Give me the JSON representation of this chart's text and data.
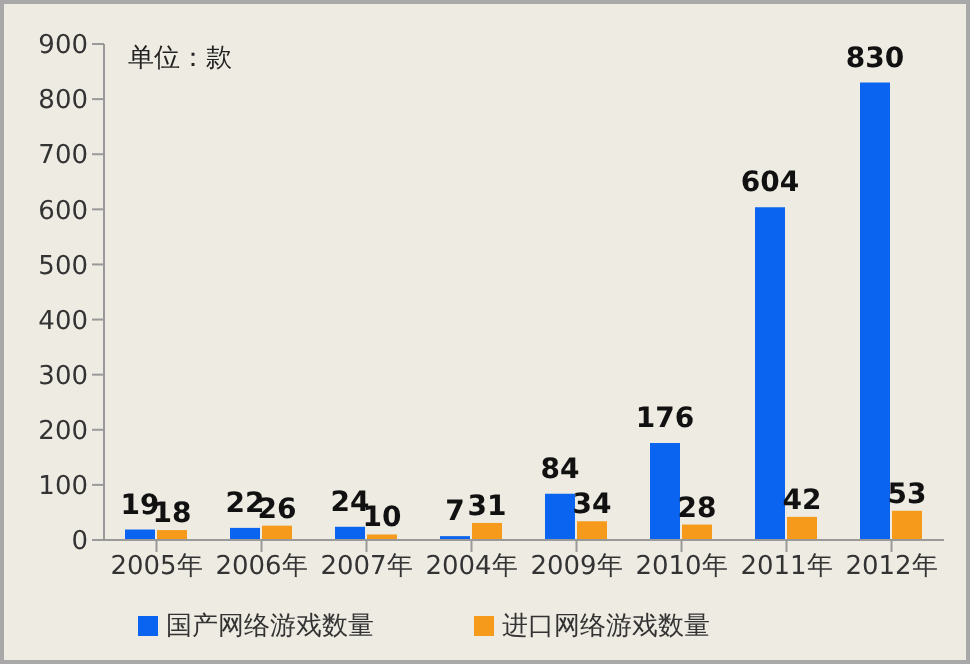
{
  "chart_data": {
    "type": "bar",
    "annotations": [
      "单位：款"
    ],
    "categories": [
      "2005年",
      "2006年",
      "2007年",
      "2004年",
      "2009年",
      "2010年",
      "2011年",
      "2012年"
    ],
    "series": [
      {
        "name": "国产网络游戏数量",
        "color": "#0a64f0",
        "values": [
          19,
          22,
          24,
          7,
          84,
          176,
          604,
          830
        ]
      },
      {
        "name": "进口网络游戏数量",
        "color": "#f59a1a",
        "values": [
          18,
          26,
          10,
          31,
          34,
          28,
          42,
          53
        ]
      }
    ],
    "ylim": [
      0,
      900
    ],
    "yticks": [
      0,
      100,
      200,
      300,
      400,
      500,
      600,
      700,
      800,
      900
    ],
    "grid": false,
    "legend": "bottom",
    "data_labels": true
  }
}
